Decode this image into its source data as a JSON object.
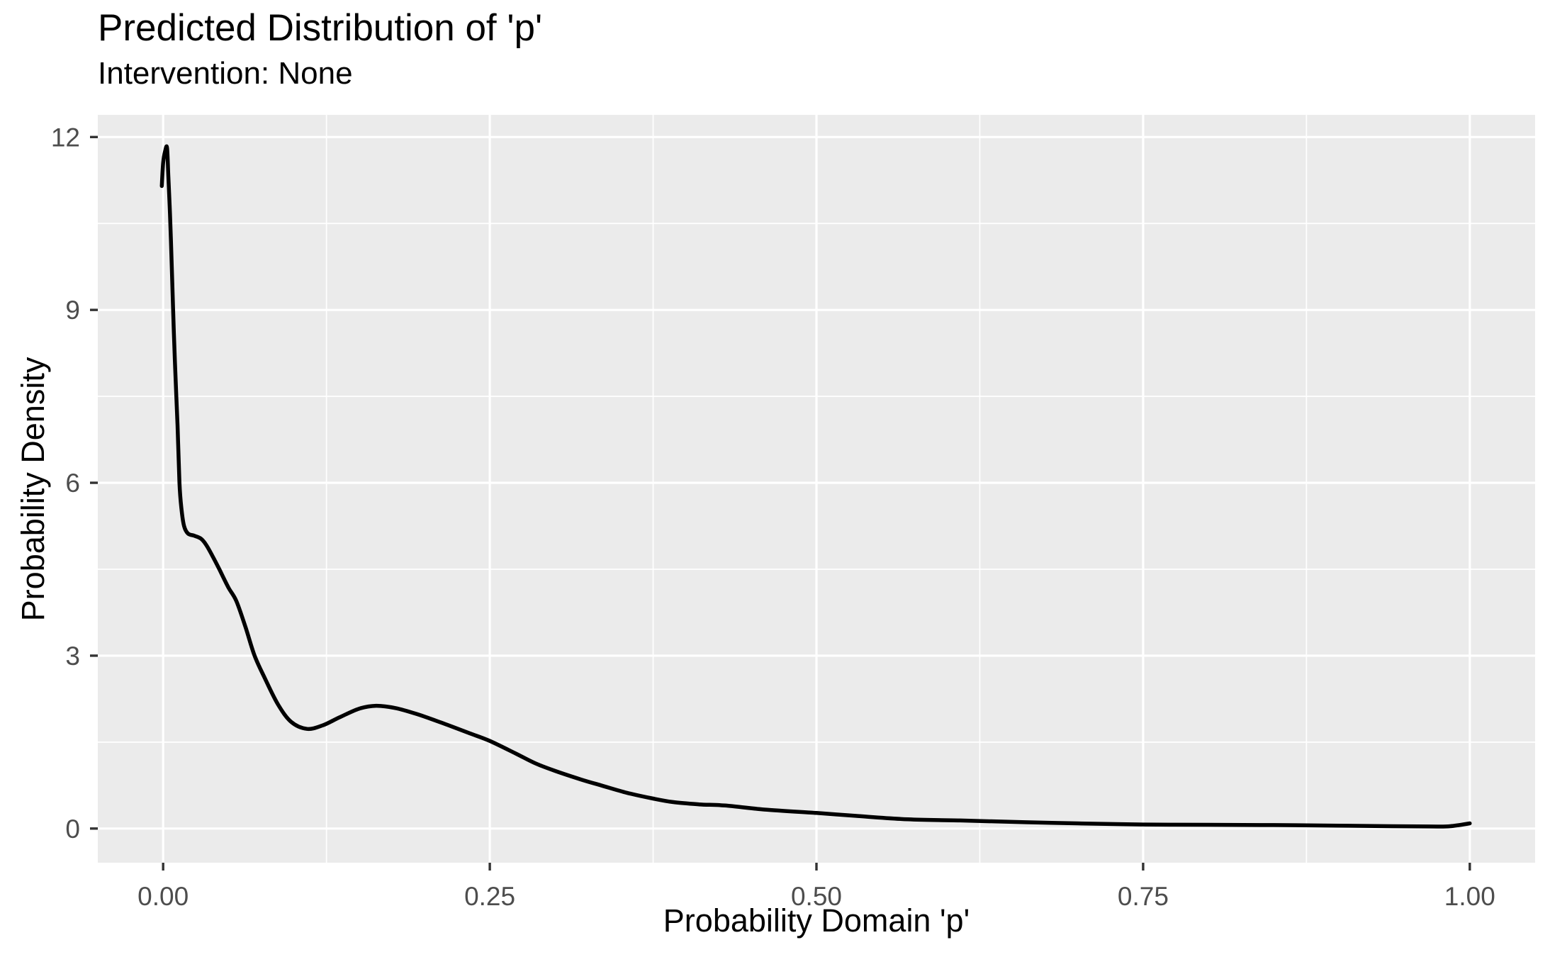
{
  "chart_data": {
    "type": "line",
    "variant": "kernel-density-curve",
    "title": "Predicted Distribution of 'p'",
    "subtitle": "Intervention: None",
    "xlabel": "Probability Domain 'p'",
    "ylabel": "Probability Density",
    "x_ticks": {
      "values": [
        0,
        0.25,
        0.5,
        0.75,
        1.0
      ],
      "labels": [
        "0.00",
        "0.25",
        "0.50",
        "0.75",
        "1.00"
      ]
    },
    "y_ticks": {
      "values": [
        0,
        3,
        6,
        9,
        12
      ],
      "labels": [
        "0",
        "3",
        "6",
        "9",
        "12"
      ]
    },
    "x_minor": [
      0.125,
      0.375,
      0.625,
      0.875
    ],
    "y_minor": [
      1.5,
      4.5,
      7.5,
      10.5
    ],
    "xlim": [
      -0.05,
      1.05
    ],
    "ylim": [
      -0.593,
      12.385
    ],
    "grid": true,
    "legend_position": "none",
    "colors": {
      "panel_bg": "#EBEBEB",
      "grid": "#FFFFFF",
      "line": "#000000",
      "tick_mark": "#333333",
      "tick_label": "#4D4D4D",
      "text": "#000000"
    },
    "series": [
      {
        "name": "density",
        "points": [
          [
            -0.001,
            11.15
          ],
          [
            0.0,
            11.55
          ],
          [
            0.0015,
            11.75
          ],
          [
            0.003,
            11.81
          ],
          [
            0.004,
            11.3
          ],
          [
            0.005,
            10.8
          ],
          [
            0.006,
            10.2
          ],
          [
            0.0075,
            9.1
          ],
          [
            0.009,
            8.1
          ],
          [
            0.011,
            7.0
          ],
          [
            0.0125,
            6.0
          ],
          [
            0.014,
            5.55
          ],
          [
            0.016,
            5.25
          ],
          [
            0.019,
            5.12
          ],
          [
            0.024,
            5.08
          ],
          [
            0.029,
            5.03
          ],
          [
            0.033,
            4.92
          ],
          [
            0.038,
            4.72
          ],
          [
            0.043,
            4.5
          ],
          [
            0.05,
            4.18
          ],
          [
            0.056,
            3.95
          ],
          [
            0.063,
            3.5
          ],
          [
            0.07,
            3.0
          ],
          [
            0.078,
            2.6
          ],
          [
            0.088,
            2.15
          ],
          [
            0.098,
            1.85
          ],
          [
            0.11,
            1.73
          ],
          [
            0.122,
            1.79
          ],
          [
            0.135,
            1.93
          ],
          [
            0.15,
            2.08
          ],
          [
            0.163,
            2.13
          ],
          [
            0.178,
            2.09
          ],
          [
            0.195,
            1.98
          ],
          [
            0.215,
            1.82
          ],
          [
            0.235,
            1.65
          ],
          [
            0.25,
            1.52
          ],
          [
            0.27,
            1.3
          ],
          [
            0.285,
            1.13
          ],
          [
            0.3,
            1.0
          ],
          [
            0.32,
            0.85
          ],
          [
            0.335,
            0.75
          ],
          [
            0.355,
            0.62
          ],
          [
            0.375,
            0.52
          ],
          [
            0.39,
            0.46
          ],
          [
            0.41,
            0.42
          ],
          [
            0.43,
            0.4
          ],
          [
            0.46,
            0.33
          ],
          [
            0.5,
            0.27
          ],
          [
            0.53,
            0.22
          ],
          [
            0.57,
            0.16
          ],
          [
            0.61,
            0.14
          ],
          [
            0.66,
            0.11
          ],
          [
            0.7,
            0.09
          ],
          [
            0.75,
            0.07
          ],
          [
            0.8,
            0.065
          ],
          [
            0.85,
            0.06
          ],
          [
            0.9,
            0.05
          ],
          [
            0.94,
            0.04
          ],
          [
            0.97,
            0.035
          ],
          [
            0.985,
            0.04
          ],
          [
            1.0,
            0.09
          ]
        ]
      }
    ]
  }
}
